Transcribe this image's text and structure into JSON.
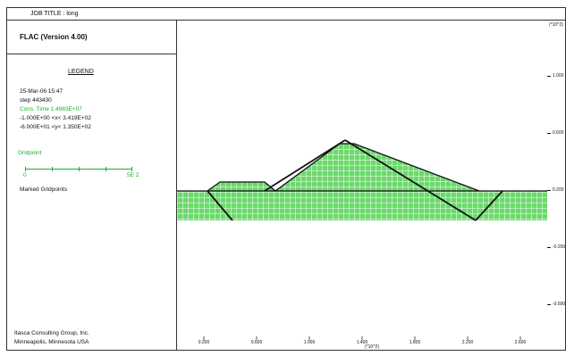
{
  "job_title": "JOB TITLE : long",
  "app_title": "FLAC (Version 4.00)",
  "legend": {
    "title": "LEGEND",
    "step_line": "25-Mar-06 15:47",
    "step_number": "step 443430",
    "cons_time": "Cons. Time   1.4983E+07",
    "x_range": "-1.000E+00 <x< 3.419E+02",
    "y_range": "-6.000E+01 <y< 1.350E+02",
    "gridpoint_label": "Gridpoint",
    "scale_min": "0",
    "scale_max": "5E 2",
    "marked_label": "Marked Gridpoints"
  },
  "footer": {
    "line1": "Itasca Consulting Group, Inc.",
    "line2": "Minneapolis, Minnesota  USA"
  },
  "x_axis": {
    "ticks": [
      "0.200",
      "0.600",
      "1.000",
      "1.400",
      "1.800",
      "2.200",
      "2.600",
      "3.000"
    ],
    "exponent": "(*10^2)"
  },
  "y_axis": {
    "exponent": "(*10^2)",
    "ticks": [
      "1.000",
      "0.600",
      "0.200",
      "-0.200",
      "-0.600"
    ]
  },
  "colors": {
    "mesh_fill": "#6dd86d",
    "mesh_line": "#ffffff",
    "outline": "#111111",
    "legend_green": "#1fae2d"
  }
}
